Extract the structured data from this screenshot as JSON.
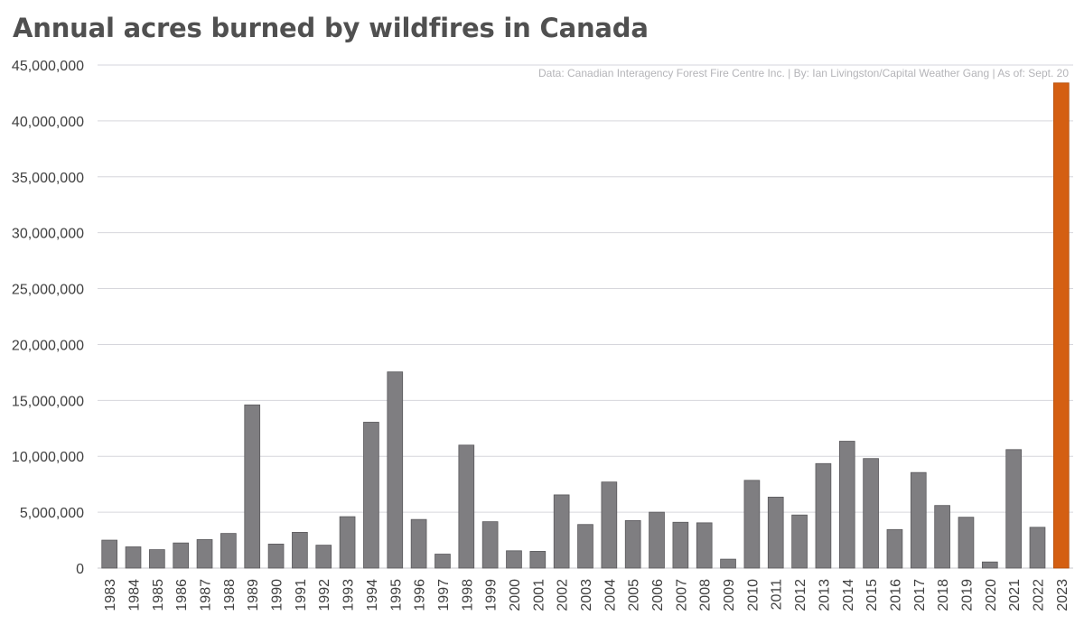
{
  "chart_data": {
    "type": "bar",
    "title": "Annual acres burned by wildfires in Canada",
    "source_note": "Data: Canadian Interagency Forest Fire Centre Inc. | By: Ian Livingston/Capital Weather Gang | As of: Sept. 20",
    "xlabel": "",
    "ylabel": "",
    "ylim": [
      0,
      45000000
    ],
    "yticks": [
      0,
      5000000,
      10000000,
      15000000,
      20000000,
      25000000,
      30000000,
      35000000,
      40000000,
      45000000
    ],
    "ytick_labels": [
      "0",
      "5,000,000",
      "10,000,000",
      "15,000,000",
      "20,000,000",
      "25,000,000",
      "30,000,000",
      "35,000,000",
      "40,000,000",
      "45,000,000"
    ],
    "grid": true,
    "colors": {
      "bar": "#7f7e81",
      "highlight": "#d45f12",
      "grid": "#d6d6dc",
      "axis": "#c8c8cc"
    },
    "highlight_category": "2023",
    "categories": [
      "1983",
      "1984",
      "1985",
      "1986",
      "1987",
      "1988",
      "1989",
      "1990",
      "1991",
      "1992",
      "1993",
      "1994",
      "1995",
      "1996",
      "1997",
      "1998",
      "1999",
      "2000",
      "2001",
      "2002",
      "2003",
      "2004",
      "2005",
      "2006",
      "2007",
      "2008",
      "2009",
      "2010",
      "2011",
      "2012",
      "2013",
      "2014",
      "2015",
      "2016",
      "2017",
      "2018",
      "2019",
      "2020",
      "2021",
      "2022",
      "2023"
    ],
    "values": [
      2500000,
      1900000,
      1650000,
      2250000,
      2550000,
      3100000,
      14600000,
      2150000,
      3200000,
      2050000,
      4600000,
      13050000,
      17550000,
      4350000,
      1250000,
      11000000,
      4150000,
      1550000,
      1500000,
      6550000,
      3900000,
      7700000,
      4250000,
      5000000,
      4100000,
      4050000,
      800000,
      7850000,
      6350000,
      4750000,
      9350000,
      11350000,
      9800000,
      3450000,
      8550000,
      5600000,
      4550000,
      550000,
      10600000,
      3650000,
      43400000
    ]
  }
}
